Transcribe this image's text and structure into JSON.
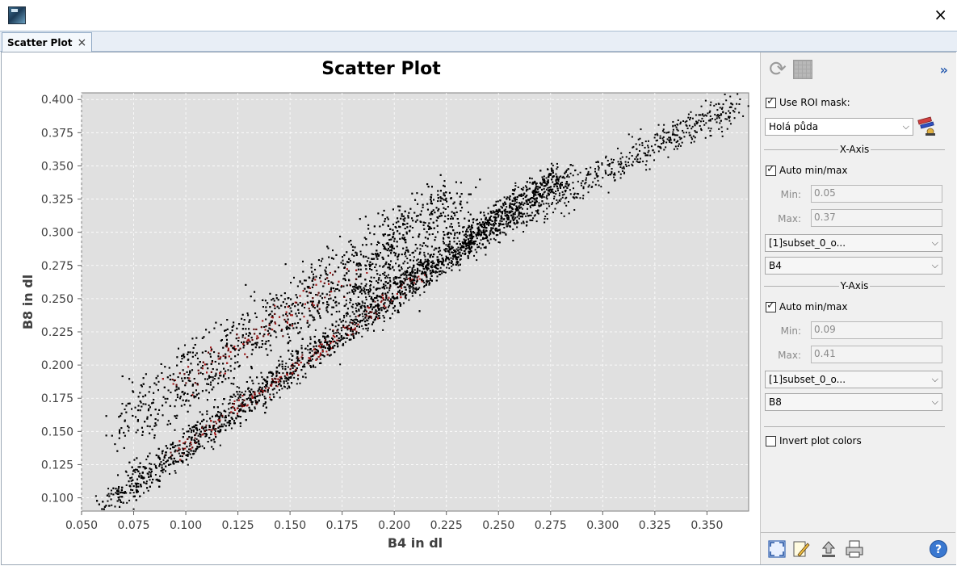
{
  "window": {
    "close_glyph": "×",
    "app_icon": "snap-app-icon"
  },
  "tab": {
    "label": "Scatter Plot",
    "close_glyph": "×"
  },
  "chart_data": {
    "type": "scatter",
    "title": "Scatter Plot",
    "xlabel": "B4 in dl",
    "ylabel": "B8 in dl",
    "xlim": [
      0.05,
      0.37
    ],
    "ylim": [
      0.09,
      0.405
    ],
    "x_ticks": [
      "0.050",
      "0.075",
      "0.100",
      "0.125",
      "0.150",
      "0.175",
      "0.200",
      "0.225",
      "0.250",
      "0.275",
      "0.300",
      "0.325",
      "0.350"
    ],
    "x_tick_values": [
      0.05,
      0.075,
      0.1,
      0.125,
      0.15,
      0.175,
      0.2,
      0.225,
      0.25,
      0.275,
      0.3,
      0.325,
      0.35
    ],
    "y_ticks": [
      "0.400",
      "0.375",
      "0.350",
      "0.325",
      "0.300",
      "0.275",
      "0.250",
      "0.225",
      "0.200",
      "0.175",
      "0.150",
      "0.125",
      "0.100"
    ],
    "y_tick_values": [
      0.4,
      0.375,
      0.35,
      0.325,
      0.3,
      0.275,
      0.25,
      0.225,
      0.2,
      0.175,
      0.15,
      0.125,
      0.1
    ],
    "grid": true,
    "background": "#e0e0e0",
    "density_colors": [
      "#000000",
      "#5a0a0a",
      "#a01818"
    ],
    "clusters": [
      {
        "x0": 0.058,
        "y0": 0.092,
        "x1": 0.28,
        "y1": 0.345,
        "spread": 0.006
      },
      {
        "x0": 0.068,
        "y0": 0.155,
        "x1": 0.23,
        "y1": 0.325,
        "spread": 0.012
      },
      {
        "x0": 0.18,
        "y0": 0.25,
        "x1": 0.365,
        "y1": 0.398,
        "spread": 0.007
      }
    ]
  },
  "panel": {
    "use_roi_label": "Use ROI mask:",
    "use_roi_checked": true,
    "roi_value": "Holá půda",
    "x_axis": {
      "title": "X-Axis",
      "auto_label": "Auto min/max",
      "auto_checked": true,
      "min_label": "Min:",
      "min_value": "0.05",
      "max_label": "Max:",
      "max_value": "0.37",
      "product": "[1]subset_0_o...",
      "band": "B4"
    },
    "y_axis": {
      "title": "Y-Axis",
      "auto_label": "Auto min/max",
      "auto_checked": true,
      "min_label": "Min:",
      "min_value": "0.09",
      "max_label": "Max:",
      "max_value": "0.41",
      "product": "[1]subset_0_o...",
      "band": "B8"
    },
    "invert_label": "Invert plot colors",
    "invert_checked": false,
    "expand_glyph": "»",
    "dropdown_glyph": "⌵"
  }
}
